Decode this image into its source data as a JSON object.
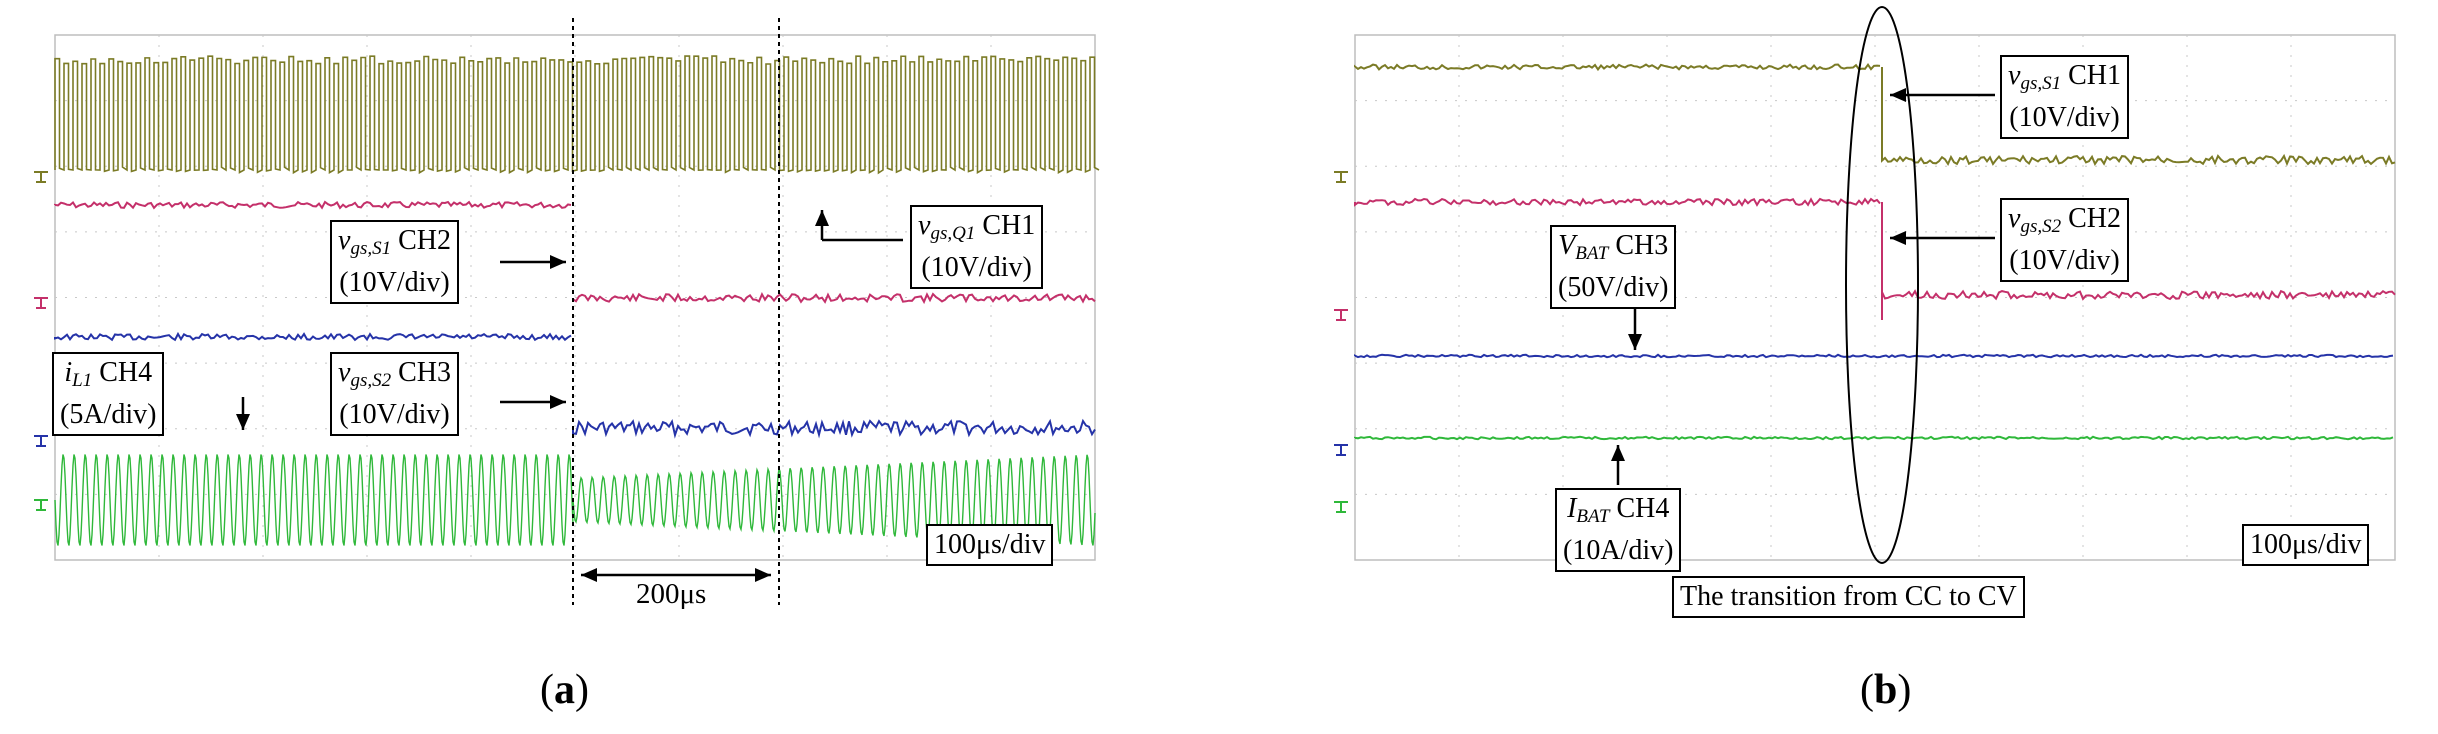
{
  "figure": {
    "panels": [
      {
        "id": "a",
        "caption_pre": "(",
        "caption_letter": "a",
        "caption_post": ")",
        "labels": {
          "vgsS1": {
            "sym": "v",
            "sub": "gs,S1",
            "ch": "CH2",
            "scale": "(10V/div)"
          },
          "vgsQ1": {
            "sym": "v",
            "sub": "gs,Q1",
            "ch": "CH1",
            "scale": "(10V/div)"
          },
          "iL1": {
            "sym": "i",
            "sub": "L1",
            "ch": "CH4",
            "scale": "(5A/div)"
          },
          "vgsS2": {
            "sym": "v",
            "sub": "gs,S2",
            "ch": "CH3",
            "scale": "(10V/div)"
          }
        },
        "timebase": "100μs/div",
        "interval": "200μs"
      },
      {
        "id": "b",
        "caption_pre": "(",
        "caption_letter": "b",
        "caption_post": ")",
        "labels": {
          "vgsS1": {
            "sym": "v",
            "sub": "gs,S1",
            "ch": "CH1",
            "scale": "(10V/div)"
          },
          "vgsS2": {
            "sym": "v",
            "sub": "gs,S2",
            "ch": "CH2",
            "scale": "(10V/div)"
          },
          "vbat": {
            "sym": "V",
            "sub": "BAT",
            "ch": "CH3",
            "scale": "(50V/div)"
          },
          "ibat": {
            "sym": "I",
            "sub": "BAT",
            "ch": "CH4",
            "scale": "(10A/div)"
          }
        },
        "timebase": "100μs/div",
        "transition": "The transition from CC to CV"
      }
    ]
  },
  "colors": {
    "ch1": "#7b7b26",
    "ch2": "#c4306a",
    "ch3": "#2533a8",
    "ch4": "#2fb83a",
    "grid": "#c8c8c8"
  }
}
